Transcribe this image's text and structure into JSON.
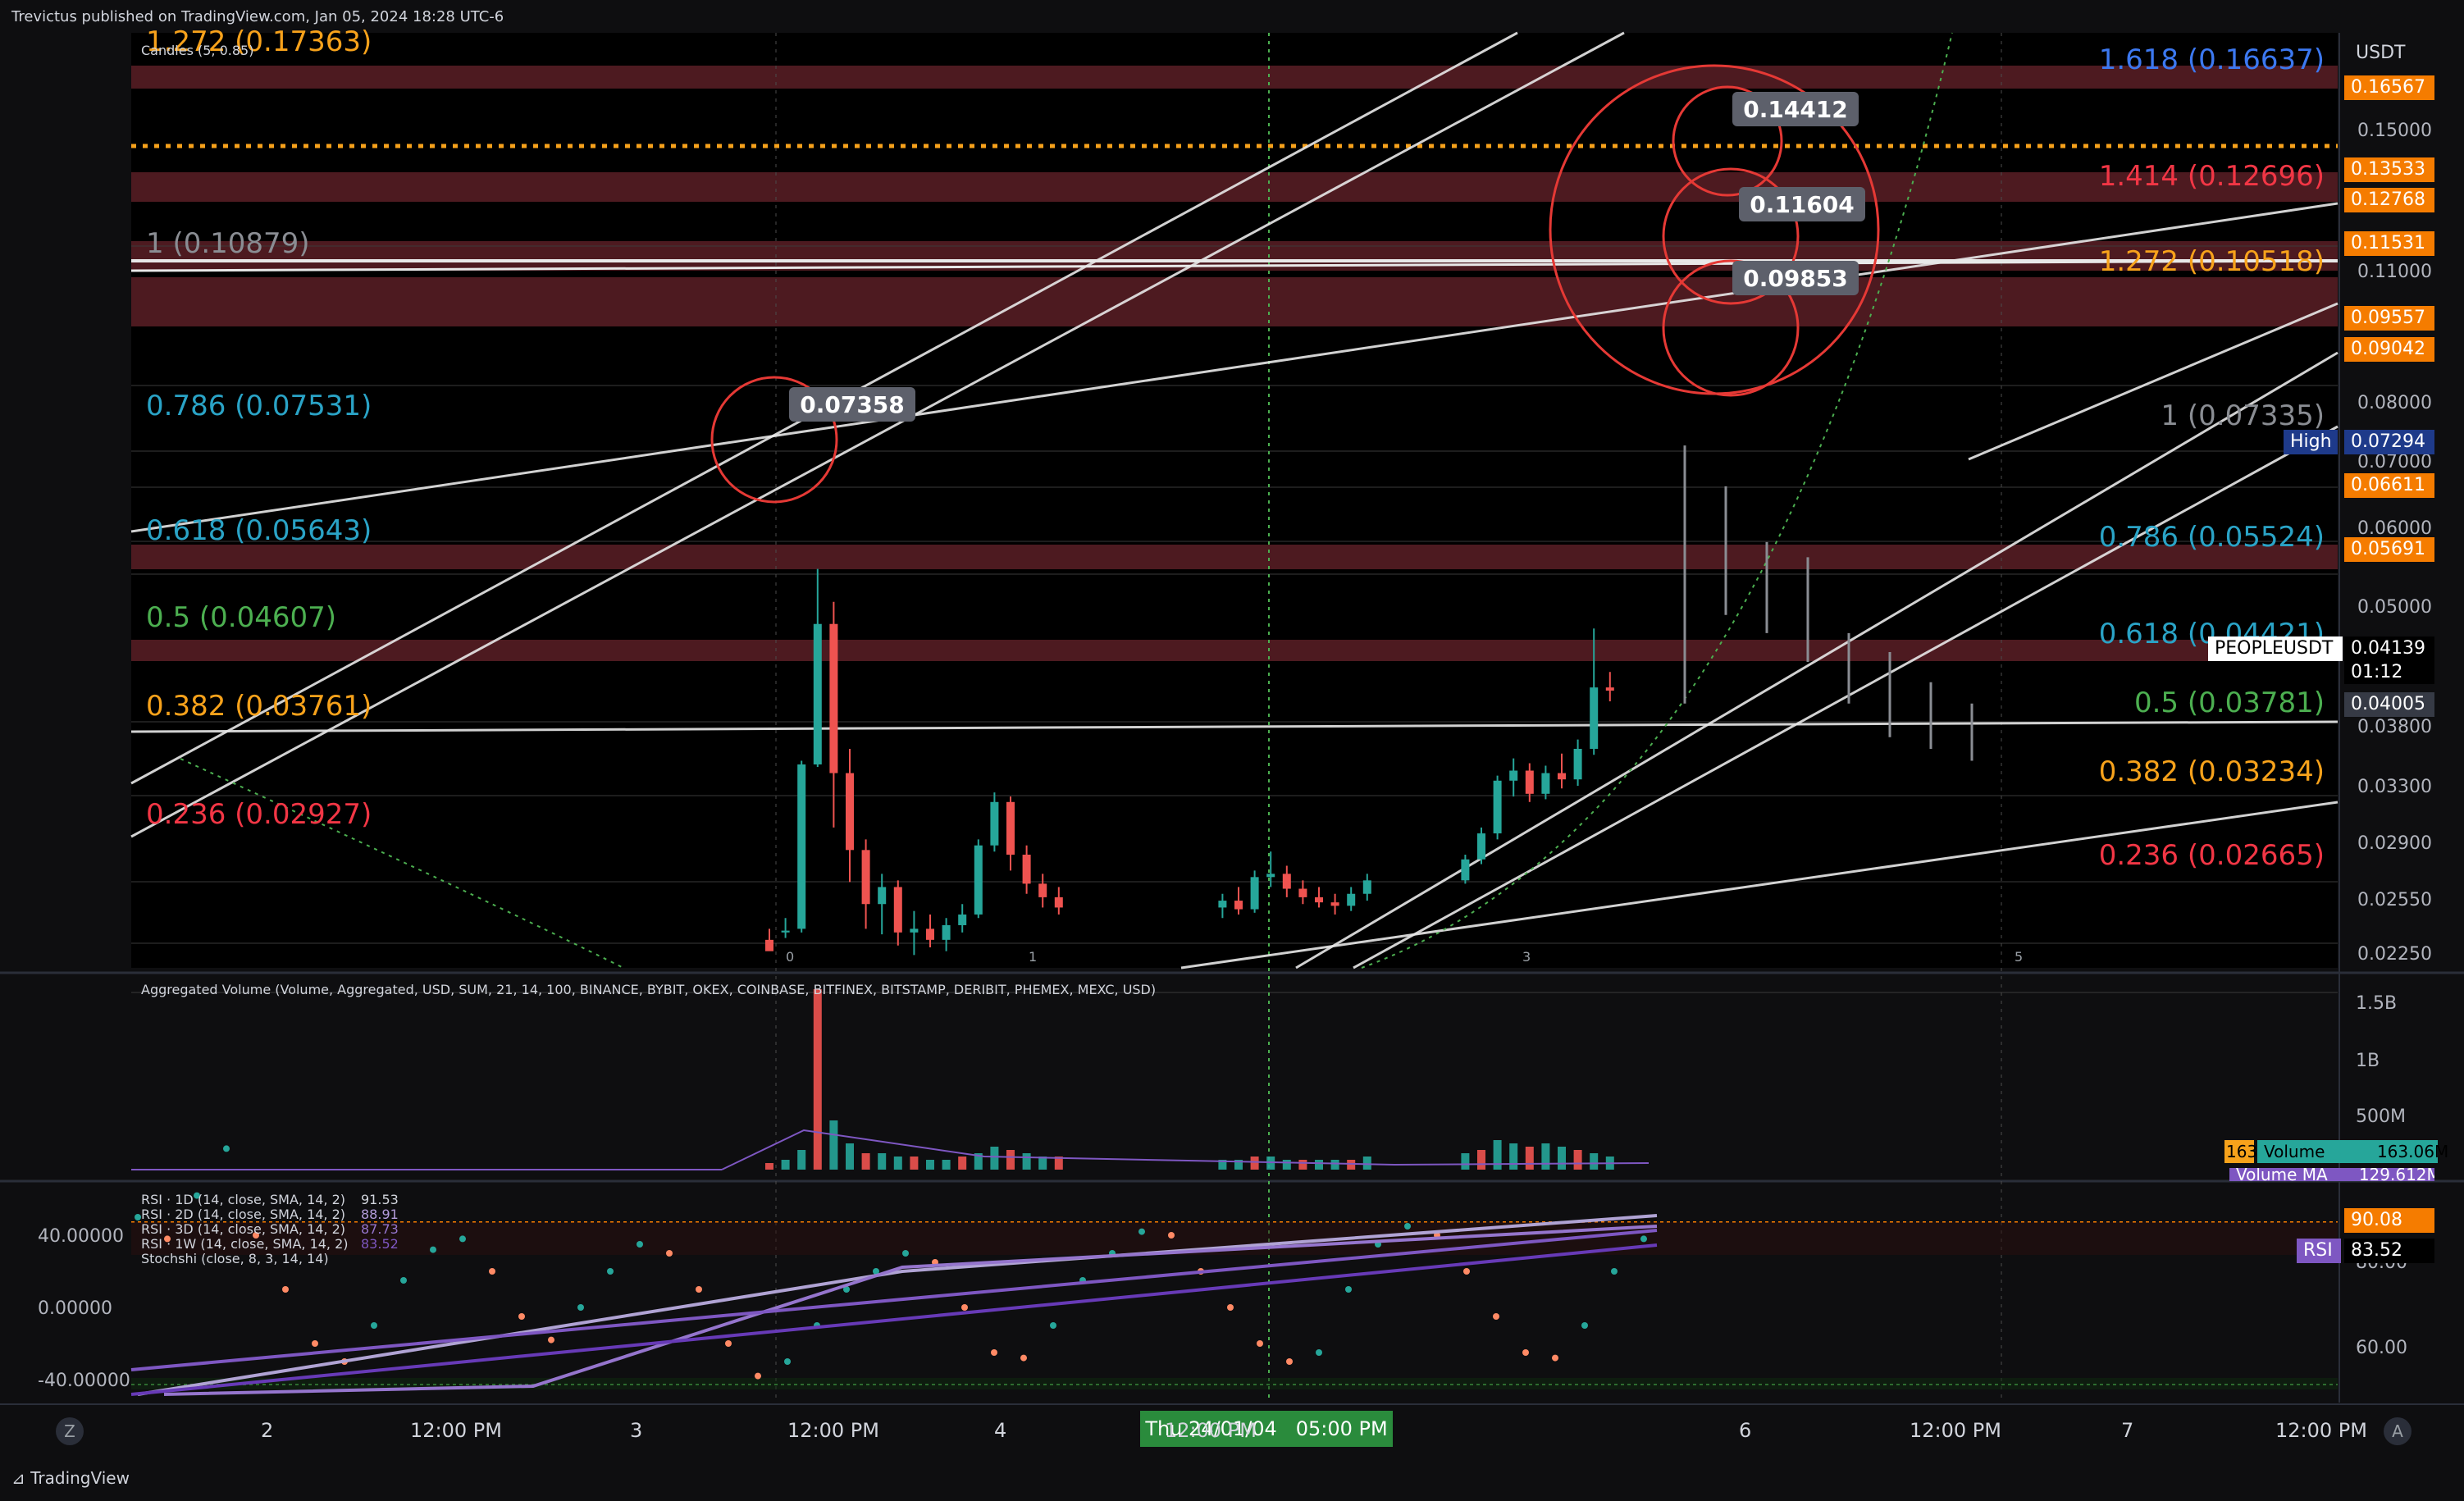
{
  "header": {
    "published": "Trevictus published on TradingView.com, Jan 05, 2024 18:28 UTC-6",
    "candles_label": "Candles (5, 0.85)"
  },
  "footer": {
    "logo": "TradingView"
  },
  "colors": {
    "background": "#0e0e10",
    "up_candle": "#26a69a",
    "down_candle": "#ef5350",
    "zone_fill": "#5a1e26",
    "fib_grey": "#8a8d93",
    "fib_teal": "#2aa3c6",
    "fib_green": "#4caf50",
    "fib_orange": "#f7a21b",
    "fib_red": "#f23645",
    "fib_blue": "#3c78f0",
    "rsi_purple": "#7e57c2"
  },
  "left_fib": [
    {
      "label": "1.272 (0.17363)",
      "color": "#f7a21b"
    },
    {
      "label": "1 (0.10879)",
      "color": "#8a8d93"
    },
    {
      "label": "0.786 (0.07531)",
      "color": "#2aa3c6"
    },
    {
      "label": "0.618 (0.05643)",
      "color": "#2aa3c6"
    },
    {
      "label": "0.5 (0.04607)",
      "color": "#4caf50"
    },
    {
      "label": "0.382 (0.03761)",
      "color": "#f7a21b"
    },
    {
      "label": "0.236 (0.02927)",
      "color": "#f23645"
    }
  ],
  "right_fib": [
    {
      "label": "1.618 (0.16637)",
      "color": "#3c78f0"
    },
    {
      "label": "1.414 (0.12696)",
      "color": "#f23645"
    },
    {
      "label": "1.272 (0.10518)",
      "color": "#f7a21b"
    },
    {
      "label": "1 (0.07335)",
      "color": "#8a8d93"
    },
    {
      "label": "0.786 (0.05524)",
      "color": "#2aa3c6"
    },
    {
      "label": "0.618 (0.04421)",
      "color": "#2aa3c6"
    },
    {
      "label": "0.5 (0.03781)",
      "color": "#4caf50"
    },
    {
      "label": "0.382 (0.03234)",
      "color": "#f7a21b"
    },
    {
      "label": "0.236 (0.02665)",
      "color": "#f23645"
    }
  ],
  "callouts": [
    "0.14412",
    "0.11604",
    "0.09853",
    "0.07358"
  ],
  "price_axis": {
    "currency": "USDT",
    "labels": [
      "0.15000",
      "0.11000",
      "0.08000",
      "0.07000",
      "0.06000",
      "0.05000",
      "0.03800",
      "0.03300",
      "0.02900",
      "0.02550",
      "0.02250"
    ],
    "orange_tags": [
      "0.16567",
      "0.13533",
      "0.12768",
      "0.11531",
      "0.09557",
      "0.09042",
      "0.06611",
      "0.05691"
    ],
    "high_label": "High",
    "high_value": "0.07294",
    "symbol": "PEOPLEUSDT",
    "last_price": "0.04139",
    "countdown": "01:12",
    "grey_tag": "0.04005"
  },
  "volume_panel": {
    "title": "Aggregated Volume (Volume, Aggregated, USD, SUM, 21, 14, 100, BINANCE, BYBIT, OKEX, COINBASE, BITFINEX, BITSTAMP, DERIBIT, PHEMEX, MEXC, USD)",
    "axis": [
      "1.5B",
      "1B",
      "500M"
    ],
    "volume_label": "Volume",
    "volume_value": "163.06M",
    "volume_prefix": "163.",
    "vma_label": "Volume MA",
    "vma_value": "129.612M"
  },
  "rsi_panel": {
    "lines": [
      {
        "label": "RSI · 1D (14, close, SMA, 14, 2)",
        "value": "91.53",
        "color": "#d1d4dc"
      },
      {
        "label": "RSI · 2D (14, close, SMA, 14, 2)",
        "value": "88.91",
        "color": "#b39ddb"
      },
      {
        "label": "RSI · 3D (14, close, SMA, 14, 2)",
        "value": "87.73",
        "color": "#9575cd"
      },
      {
        "label": "RSI · 1W (14, close, SMA, 14, 2)",
        "value": "83.52",
        "color": "#7e57c2"
      },
      {
        "label": "Stochshi (close, 8, 3, 14, 14)",
        "value": "",
        "color": "#d1d4dc"
      }
    ],
    "left_axis": [
      "40.00000",
      "0.00000",
      "-40.00000"
    ],
    "right_axis": [
      "80.00",
      "60.00"
    ],
    "tag_orange": "90.08",
    "rsi_label": "RSI",
    "rsi_value": "83.52"
  },
  "time_axis": {
    "labels": [
      "2",
      "12:00 PM",
      "3",
      "12:00 PM",
      "4",
      "12:00 PM",
      "6",
      "12:00 PM",
      "7",
      "12:00 PM"
    ],
    "cursor_label": "Thu 24/01/04   05:00 PM"
  },
  "wave_labels": [
    "0",
    "1",
    "3",
    "5"
  ],
  "chart_data": {
    "type": "candlestick",
    "symbol": "PEOPLEUSDT",
    "y_axis_prices": [
      0.15,
      0.11,
      0.08,
      0.07,
      0.06,
      0.05,
      0.038,
      0.033,
      0.029,
      0.0255,
      0.0225
    ],
    "candles": [
      [
        0.0232,
        0.0238,
        0.0229,
        0.0226
      ],
      [
        0.0236,
        0.0244,
        0.0233,
        0.0237
      ],
      [
        0.0238,
        0.035,
        0.0236,
        0.0347
      ],
      [
        0.0347,
        0.0545,
        0.0345,
        0.048
      ],
      [
        0.048,
        0.0505,
        0.03,
        0.034
      ],
      [
        0.034,
        0.036,
        0.0265,
        0.0285
      ],
      [
        0.0285,
        0.0292,
        0.0238,
        0.0252
      ],
      [
        0.0252,
        0.027,
        0.0235,
        0.0262
      ],
      [
        0.0262,
        0.0266,
        0.0229,
        0.0236
      ],
      [
        0.0236,
        0.0248,
        0.0224,
        0.0238
      ],
      [
        0.0238,
        0.0246,
        0.0228,
        0.0232
      ],
      [
        0.0232,
        0.0244,
        0.0226,
        0.024
      ],
      [
        0.024,
        0.0252,
        0.0236,
        0.0246
      ],
      [
        0.0246,
        0.0292,
        0.0244,
        0.0288
      ],
      [
        0.0288,
        0.0325,
        0.0284,
        0.0318
      ],
      [
        0.0318,
        0.0322,
        0.0272,
        0.0282
      ],
      [
        0.0282,
        0.0288,
        0.0258,
        0.0264
      ],
      [
        0.0264,
        0.027,
        0.025,
        0.0256
      ],
      [
        0.0256,
        0.0262,
        0.0246,
        0.025
      ],
      [
        0.025,
        0.0258,
        0.0244,
        0.0254
      ],
      [
        0.0254,
        0.0262,
        0.0246,
        0.0249
      ],
      [
        0.0249,
        0.0272,
        0.0247,
        0.0268
      ],
      [
        0.0268,
        0.0284,
        0.0262,
        0.027
      ],
      [
        0.027,
        0.0275,
        0.0256,
        0.0261
      ],
      [
        0.0261,
        0.0266,
        0.0252,
        0.0256
      ],
      [
        0.0256,
        0.0262,
        0.025,
        0.0253
      ],
      [
        0.0253,
        0.0258,
        0.0246,
        0.0251
      ],
      [
        0.0251,
        0.0262,
        0.0248,
        0.0258
      ],
      [
        0.0258,
        0.027,
        0.0254,
        0.0266
      ],
      [
        0.0266,
        0.0282,
        0.0264,
        0.0279
      ],
      [
        0.0279,
        0.03,
        0.0276,
        0.0296
      ],
      [
        0.0296,
        0.0338,
        0.0292,
        0.0334
      ],
      [
        0.0334,
        0.0352,
        0.0322,
        0.0342
      ],
      [
        0.0342,
        0.0348,
        0.0318,
        0.0324
      ],
      [
        0.0324,
        0.0346,
        0.032,
        0.034
      ],
      [
        0.034,
        0.0356,
        0.0328,
        0.0335
      ],
      [
        0.0335,
        0.0368,
        0.033,
        0.036
      ],
      [
        0.036,
        0.0475,
        0.0355,
        0.0415
      ],
      [
        0.0415,
        0.043,
        0.0402,
        0.0412
      ]
    ],
    "ghost_candles": [
      [
        0.04,
        0.0725,
        0.04,
        0.056
      ],
      [
        0.056,
        0.066,
        0.049,
        0.052
      ],
      [
        0.052,
        0.058,
        0.047,
        0.05
      ],
      [
        0.05,
        0.056,
        0.044,
        0.046
      ],
      [
        0.046,
        0.047,
        0.04,
        0.042
      ],
      [
        0.042,
        0.045,
        0.037,
        0.04
      ],
      [
        0.04,
        0.042,
        0.036,
        0.038
      ],
      [
        0.038,
        0.04,
        0.035,
        0.037
      ]
    ],
    "volume": [
      0.02,
      0.03,
      0.06,
      0.55,
      0.15,
      0.08,
      0.05,
      0.05,
      0.04,
      0.04,
      0.03,
      0.03,
      0.04,
      0.05,
      0.07,
      0.06,
      0.05,
      0.04,
      0.04,
      0.03,
      0.03,
      0.04,
      0.04,
      0.03,
      0.03,
      0.03,
      0.03,
      0.03,
      0.04,
      0.05,
      0.06,
      0.09,
      0.08,
      0.07,
      0.08,
      0.07,
      0.06,
      0.05,
      0.04
    ],
    "rsi_1d": [
      50,
      38,
      62,
      88,
      40,
      10,
      -20,
      -30,
      -10,
      15,
      32,
      38,
      20,
      -5,
      -18,
      0,
      20,
      35,
      30,
      10,
      -20,
      -38,
      -30,
      -10,
      10,
      20,
      30,
      25,
      0,
      -25,
      -28,
      -10,
      15,
      30,
      42,
      40,
      20,
      0,
      -20,
      -30,
      -25,
      10,
      35,
      45,
      40,
      20,
      -5,
      -25,
      -28,
      -10,
      20,
      38
    ]
  }
}
